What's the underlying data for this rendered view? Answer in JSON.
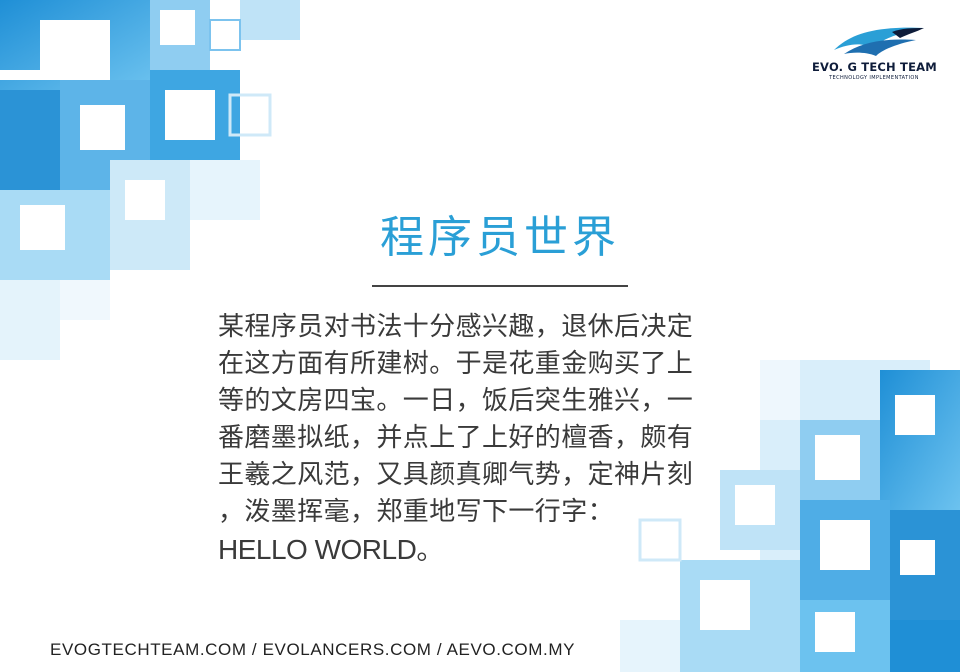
{
  "brand": {
    "name": "EVO. G TECH TEAM",
    "tagline": "TECHNOLOGY IMPLEMENTATION",
    "logo_icon": "bird-wing-icon",
    "accent_color": "#2a9fd6",
    "dark_color": "#0e1c3a"
  },
  "title": "程序员世界",
  "body_lines": [
    "某程序员对书法十分感兴趣，退休后决定",
    "在这方面有所建树。于是花重金购买了上",
    "等的文房四宝。一日，饭后突生雅兴，一",
    "番磨墨拟纸，并点上了上好的檀香，颇有",
    "王羲之风范，又具颜真卿气势，定神片刻",
    "，泼墨挥毫，郑重地写下一行字：",
    "HELLO WORLD。"
  ],
  "footer": "EVOGTECHTEAM.COM  /  EVOLANCERS.COM  /  AEVO.COM.MY"
}
